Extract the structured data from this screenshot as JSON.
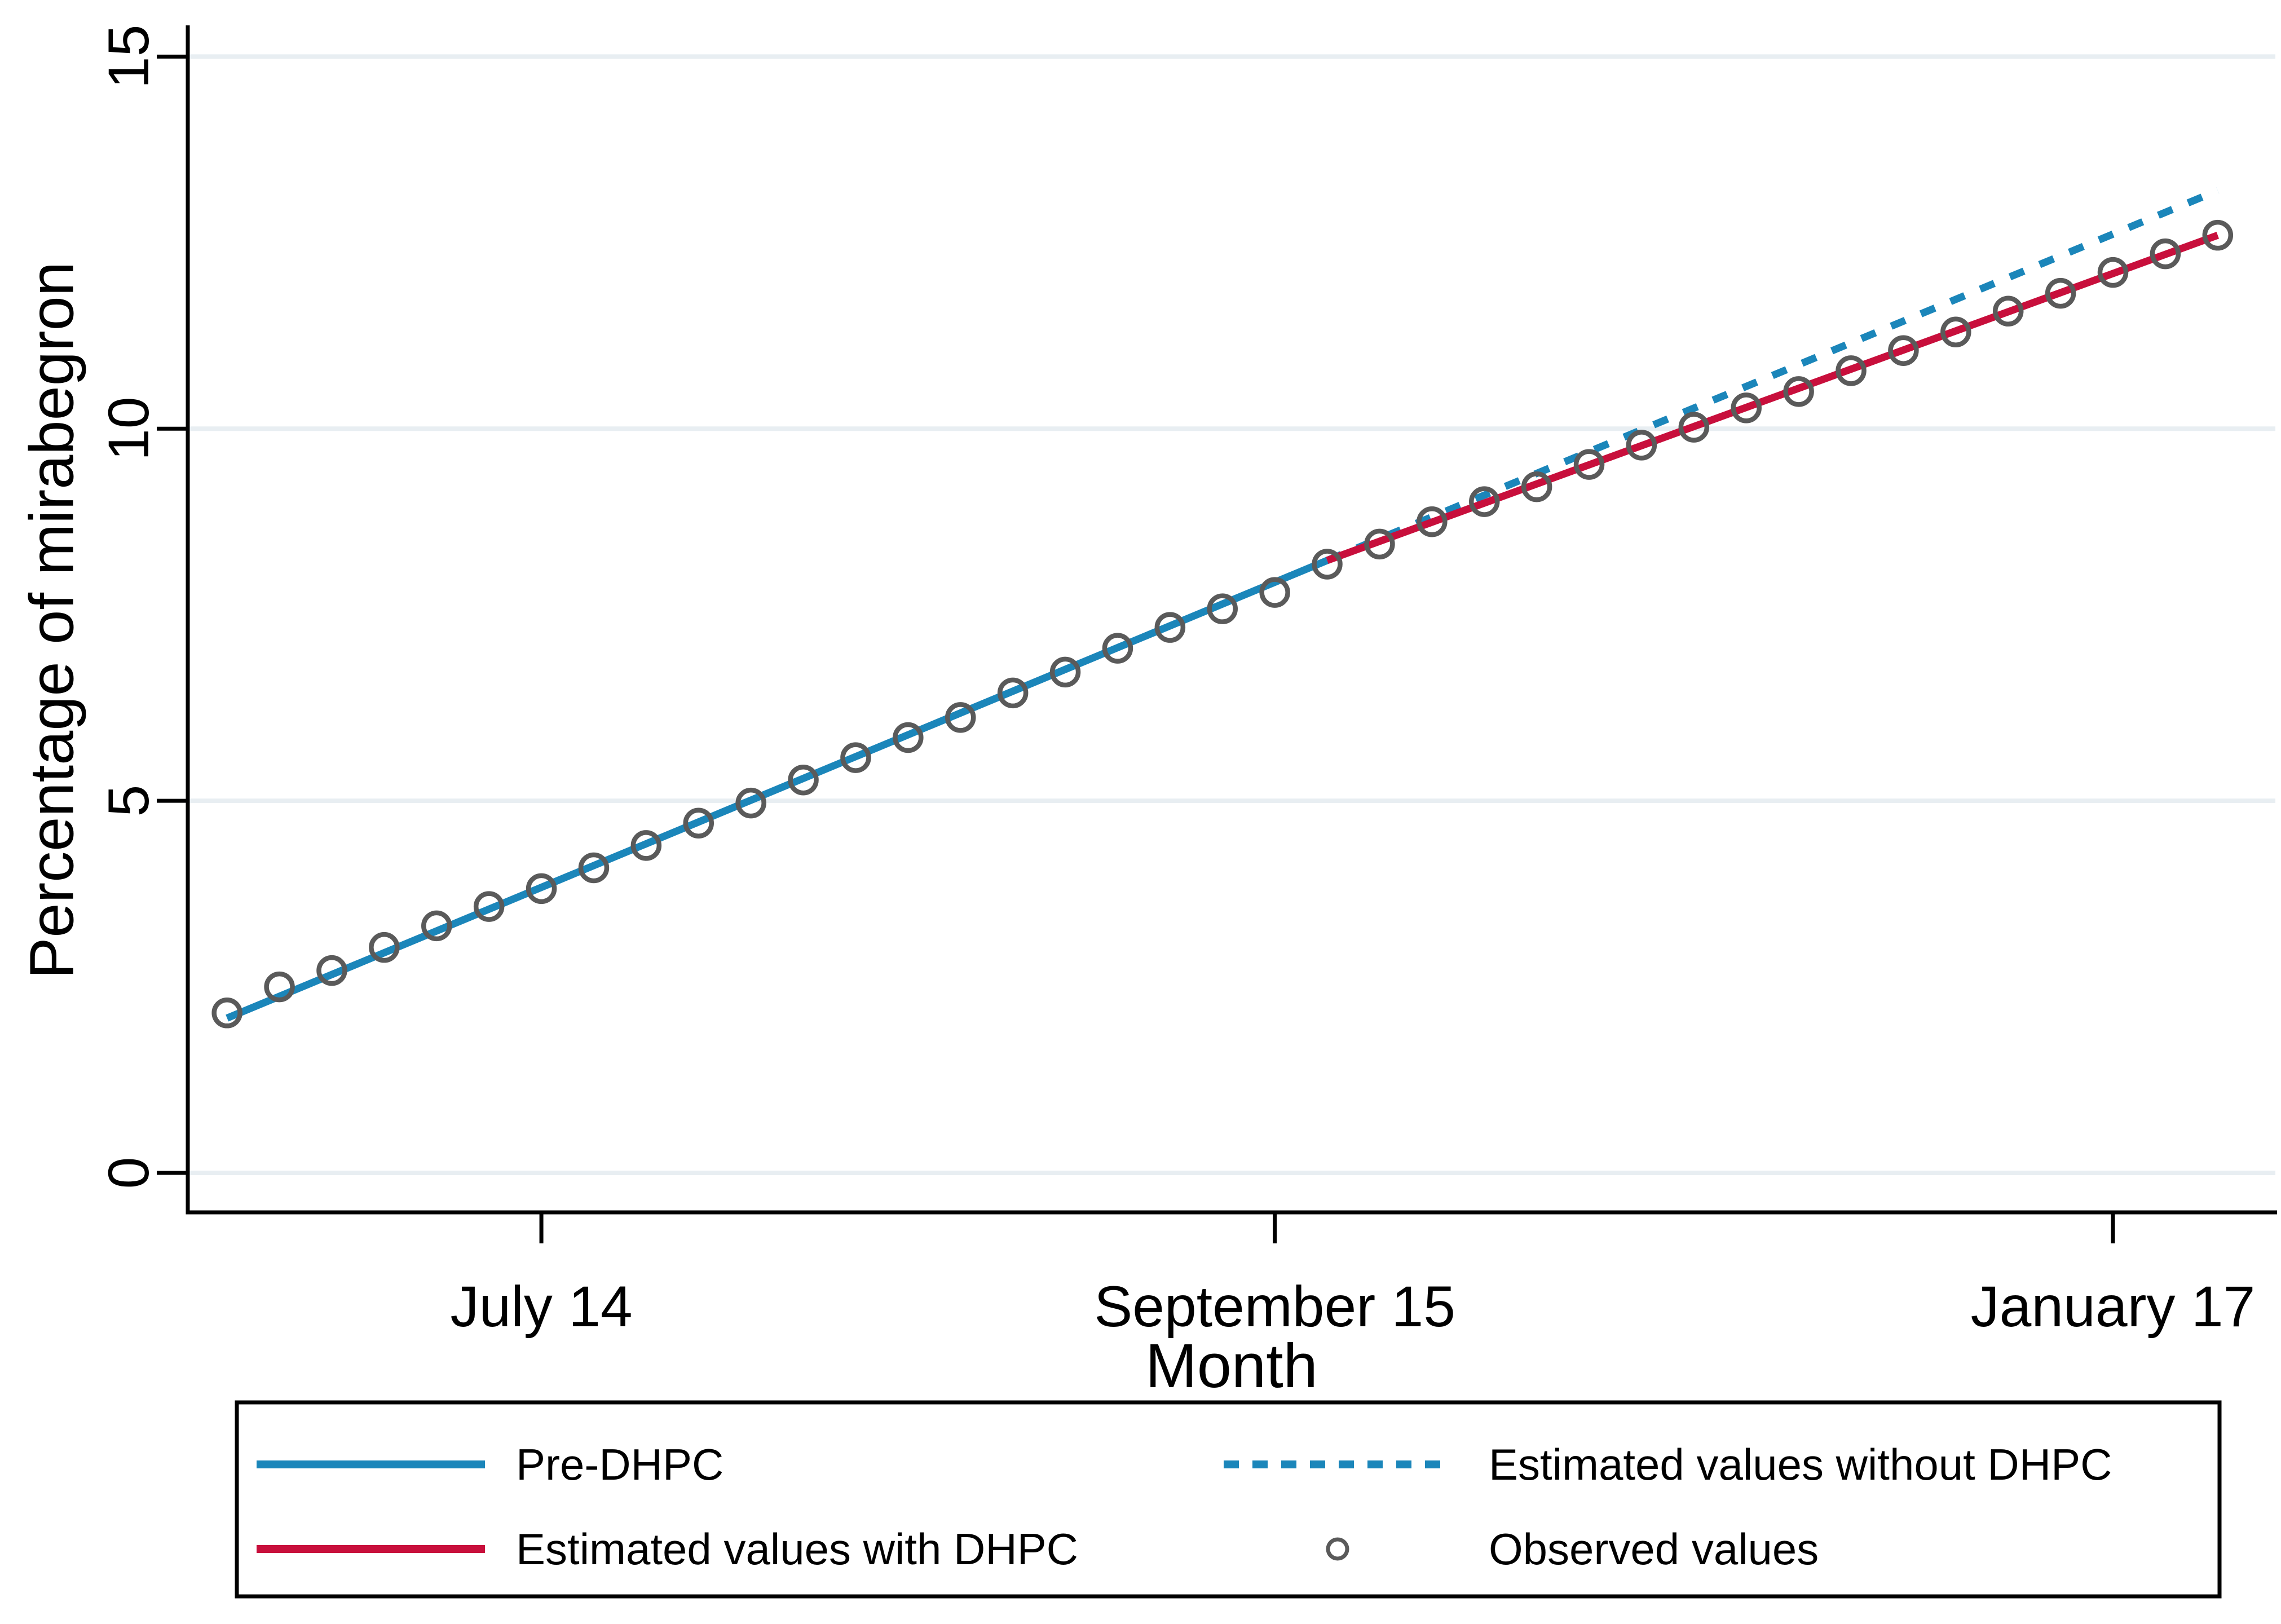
{
  "chart_data": {
    "type": "line",
    "title": "",
    "xlabel": "Month",
    "ylabel": "Percentage of mirabegron",
    "yticks": [
      0,
      5,
      10,
      15
    ],
    "xticks": [
      {
        "x": 6,
        "label": "July 14"
      },
      {
        "x": 20,
        "label": "September 15"
      },
      {
        "x": 36,
        "label": "January 17"
      }
    ],
    "xlim": [
      -0.75,
      39.1
    ],
    "ylim": [
      -0.53,
      15.42
    ],
    "grid": "horizontal-only",
    "background_color": "#ffffff",
    "axis_color": "#000000",
    "gridline_color": "#e8eef2",
    "series": [
      {
        "name": "Pre-DHPC",
        "type": "line",
        "style": "solid",
        "color": "#1b86ba",
        "x": [
          0,
          21
        ],
        "y": [
          2.08,
          8.23
        ]
      },
      {
        "name": "Estimated values without DHPC",
        "type": "line",
        "style": "dashed",
        "color": "#1b86ba",
        "x": [
          21,
          38
        ],
        "y": [
          8.23,
          13.2
        ]
      },
      {
        "name": "Estimated values with DHPC",
        "type": "line",
        "style": "solid",
        "color": "#c80f3c",
        "x": [
          21,
          38
        ],
        "y": [
          8.23,
          12.6
        ]
      },
      {
        "name": "Observed values",
        "type": "scatter",
        "marker": "hollow-circle",
        "color": "#5a5a5a",
        "x": [
          0,
          1,
          2,
          3,
          4,
          5,
          6,
          7,
          8,
          9,
          10,
          11,
          12,
          13,
          14,
          15,
          16,
          17,
          18,
          19,
          20,
          21,
          22,
          23,
          24,
          25,
          26,
          27,
          28,
          29,
          30,
          31,
          32,
          33,
          34,
          35,
          36,
          37,
          38
        ],
        "y": [
          2.15,
          2.5,
          2.72,
          3.03,
          3.32,
          3.58,
          3.82,
          4.1,
          4.4,
          4.7,
          4.97,
          5.28,
          5.58,
          5.85,
          6.12,
          6.45,
          6.73,
          7.05,
          7.33,
          7.58,
          7.8,
          8.18,
          8.45,
          8.75,
          9.02,
          9.22,
          9.52,
          9.78,
          10.02,
          10.28,
          10.5,
          10.78,
          11.05,
          11.3,
          11.58,
          11.82,
          12.1,
          12.35,
          12.6
        ]
      }
    ],
    "legend": {
      "position": "bottom",
      "border_color": "#000000",
      "columns": 2,
      "entries": [
        {
          "label": "Pre-DHPC",
          "swatch": "line-solid",
          "color": "#1b86ba"
        },
        {
          "label": "Estimated values without DHPC",
          "swatch": "line-dashed",
          "color": "#1b86ba"
        },
        {
          "label": "Estimated values with DHPC",
          "swatch": "line-solid",
          "color": "#c80f3c"
        },
        {
          "label": "Observed values",
          "swatch": "hollow-circle",
          "color": "#5a5a5a"
        }
      ]
    }
  }
}
